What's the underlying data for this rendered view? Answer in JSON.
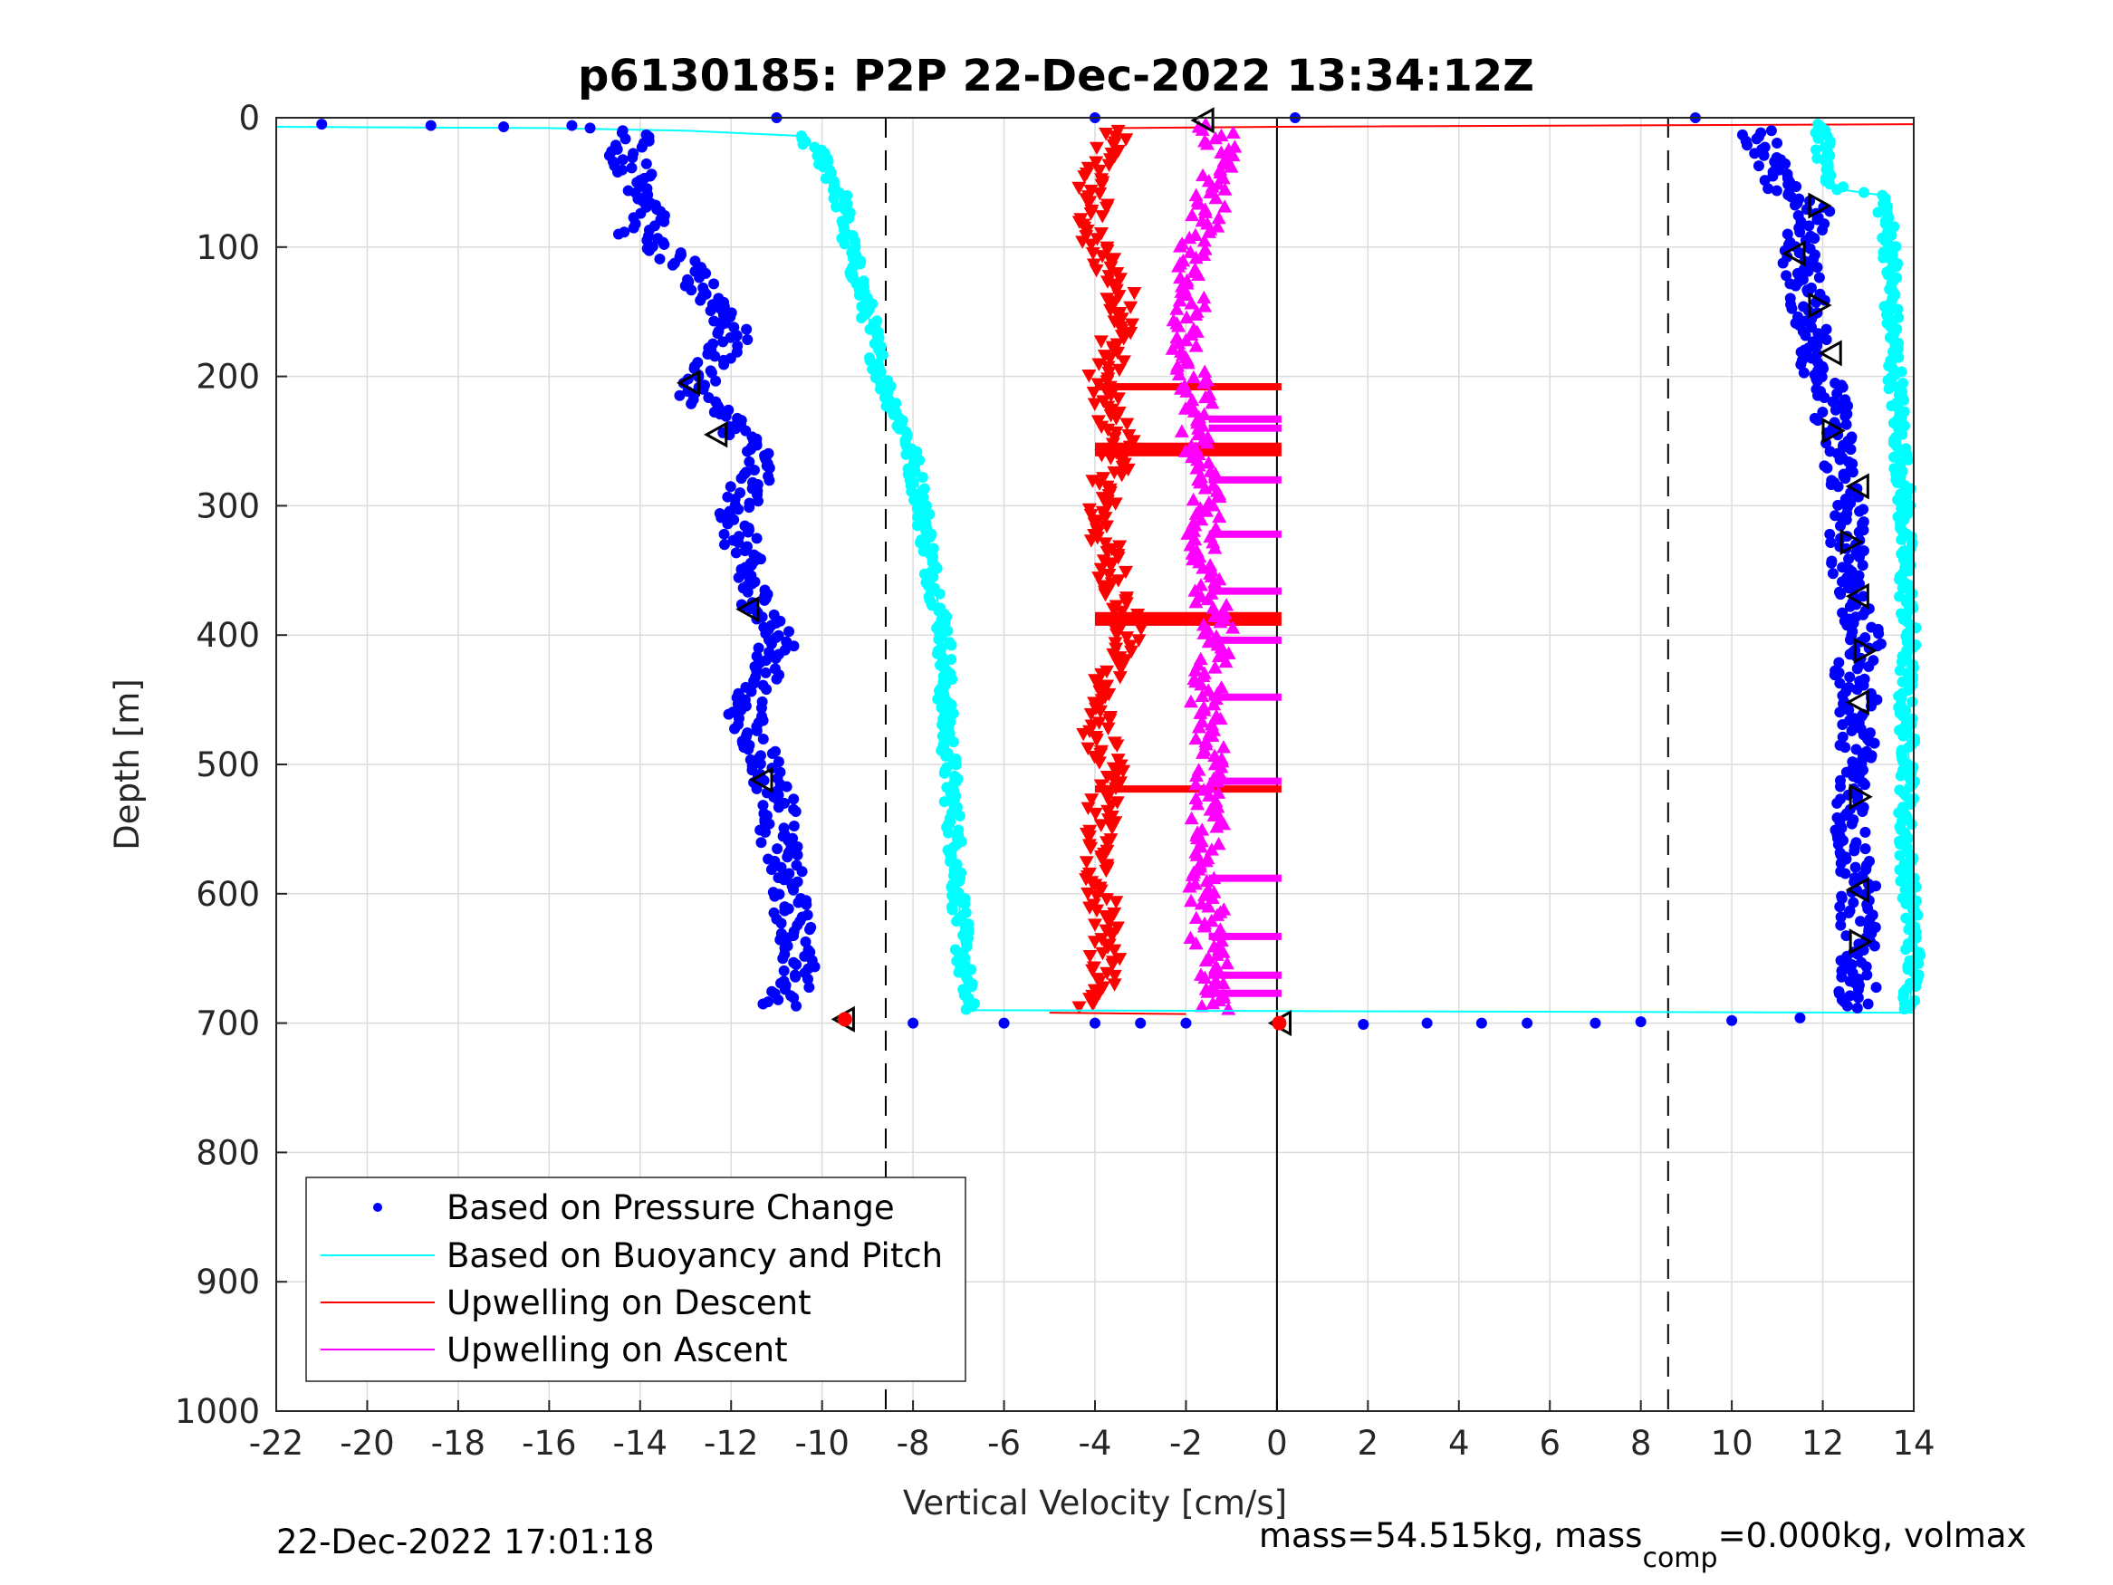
{
  "chart_data": {
    "type": "scatter",
    "title": "p6130185: P2P 22-Dec-2022 13:34:12Z",
    "xlabel": "Vertical Velocity [cm/s]",
    "ylabel": "Depth [m]",
    "xlim": [
      -22,
      14
    ],
    "ylim": [
      0,
      1000
    ],
    "y_reversed": true,
    "grid": true,
    "legend_position": "bottom-left",
    "xticks": [
      "-22",
      "-20",
      "-18",
      "-16",
      "-14",
      "-12",
      "-10",
      "-8",
      "-6",
      "-4",
      "-2",
      "0",
      "2",
      "4",
      "6",
      "8",
      "10",
      "12",
      "14"
    ],
    "yticks": [
      "0",
      "100",
      "200",
      "300",
      "400",
      "500",
      "600",
      "700",
      "800",
      "900",
      "1000"
    ],
    "reference_lines": {
      "dashed_x": [
        -8.6,
        8.6
      ],
      "solid_x": [
        0
      ]
    },
    "series": [
      {
        "name": "Based on Pressure Change",
        "color": "#0000ff",
        "marker": "dot",
        "descent": [
          {
            "depth": 10,
            "v": -14.0
          },
          {
            "depth": 30,
            "v": -14.3
          },
          {
            "depth": 50,
            "v": -14.0
          },
          {
            "depth": 70,
            "v": -13.6
          },
          {
            "depth": 90,
            "v": -14.1
          },
          {
            "depth": 110,
            "v": -13.2
          },
          {
            "depth": 130,
            "v": -12.7
          },
          {
            "depth": 150,
            "v": -12.1
          },
          {
            "depth": 170,
            "v": -12.0
          },
          {
            "depth": 190,
            "v": -12.4
          },
          {
            "depth": 210,
            "v": -12.9
          },
          {
            "depth": 230,
            "v": -12.2
          },
          {
            "depth": 250,
            "v": -11.6
          },
          {
            "depth": 270,
            "v": -11.4
          },
          {
            "depth": 290,
            "v": -11.7
          },
          {
            "depth": 310,
            "v": -11.9
          },
          {
            "depth": 330,
            "v": -11.8
          },
          {
            "depth": 350,
            "v": -11.7
          },
          {
            "depth": 370,
            "v": -11.5
          },
          {
            "depth": 390,
            "v": -11.1
          },
          {
            "depth": 410,
            "v": -11.0
          },
          {
            "depth": 430,
            "v": -11.3
          },
          {
            "depth": 450,
            "v": -11.6
          },
          {
            "depth": 470,
            "v": -11.7
          },
          {
            "depth": 490,
            "v": -11.3
          },
          {
            "depth": 510,
            "v": -11.2
          },
          {
            "depth": 530,
            "v": -10.9
          },
          {
            "depth": 550,
            "v": -11.0
          },
          {
            "depth": 570,
            "v": -10.9
          },
          {
            "depth": 590,
            "v": -10.8
          },
          {
            "depth": 610,
            "v": -10.7
          },
          {
            "depth": 630,
            "v": -10.6
          },
          {
            "depth": 650,
            "v": -10.5
          },
          {
            "depth": 670,
            "v": -10.6
          },
          {
            "depth": 685,
            "v": -10.9
          }
        ],
        "ascent": [
          {
            "depth": 690,
            "v": 12.6
          },
          {
            "depth": 670,
            "v": 12.8
          },
          {
            "depth": 650,
            "v": 12.7
          },
          {
            "depth": 630,
            "v": 12.8
          },
          {
            "depth": 610,
            "v": 12.7
          },
          {
            "depth": 590,
            "v": 12.8
          },
          {
            "depth": 570,
            "v": 12.7
          },
          {
            "depth": 550,
            "v": 12.6
          },
          {
            "depth": 530,
            "v": 12.7
          },
          {
            "depth": 510,
            "v": 12.6
          },
          {
            "depth": 490,
            "v": 12.8
          },
          {
            "depth": 470,
            "v": 12.7
          },
          {
            "depth": 450,
            "v": 12.8
          },
          {
            "depth": 430,
            "v": 12.6
          },
          {
            "depth": 410,
            "v": 12.9
          },
          {
            "depth": 390,
            "v": 12.8
          },
          {
            "depth": 370,
            "v": 12.7
          },
          {
            "depth": 350,
            "v": 12.6
          },
          {
            "depth": 330,
            "v": 12.5
          },
          {
            "depth": 310,
            "v": 12.6
          },
          {
            "depth": 290,
            "v": 12.5
          },
          {
            "depth": 270,
            "v": 12.4
          },
          {
            "depth": 250,
            "v": 12.3
          },
          {
            "depth": 230,
            "v": 12.2
          },
          {
            "depth": 210,
            "v": 12.1
          },
          {
            "depth": 190,
            "v": 11.9
          },
          {
            "depth": 170,
            "v": 11.8
          },
          {
            "depth": 150,
            "v": 11.7
          },
          {
            "depth": 130,
            "v": 11.6
          },
          {
            "depth": 110,
            "v": 11.5
          },
          {
            "depth": 90,
            "v": 11.6
          },
          {
            "depth": 70,
            "v": 11.8
          },
          {
            "depth": 50,
            "v": 10.9
          },
          {
            "depth": 30,
            "v": 10.8
          },
          {
            "depth": 10,
            "v": 10.6
          }
        ],
        "surface_points": [
          {
            "depth": 5,
            "v": -21.0
          },
          {
            "depth": 6,
            "v": -18.6
          },
          {
            "depth": 7,
            "v": -17.0
          },
          {
            "depth": 6,
            "v": -15.5
          },
          {
            "depth": 8,
            "v": -15.1
          },
          {
            "depth": 0,
            "v": -11.0
          },
          {
            "depth": 0,
            "v": -4.0
          },
          {
            "depth": 0,
            "v": 0.4
          },
          {
            "depth": 0,
            "v": 9.2
          },
          {
            "depth": 700,
            "v": -8.0
          },
          {
            "depth": 700,
            "v": -6.0
          },
          {
            "depth": 700,
            "v": -4.0
          },
          {
            "depth": 700,
            "v": -3.0
          },
          {
            "depth": 700,
            "v": -2.0
          },
          {
            "depth": 701,
            "v": 1.9
          },
          {
            "depth": 700,
            "v": 3.3
          },
          {
            "depth": 700,
            "v": 4.5
          },
          {
            "depth": 700,
            "v": 5.5
          },
          {
            "depth": 700,
            "v": 7.0
          },
          {
            "depth": 699,
            "v": 8.0
          },
          {
            "depth": 698,
            "v": 10.0
          },
          {
            "depth": 696,
            "v": 11.5
          }
        ]
      },
      {
        "name": "Based on Buoyancy and Pitch",
        "color": "#00ffff",
        "marker": "line",
        "descent": [
          {
            "depth": 7,
            "v": -22.0
          },
          {
            "depth": 8,
            "v": -16.0
          },
          {
            "depth": 10,
            "v": -13.0
          },
          {
            "depth": 14,
            "v": -10.5
          },
          {
            "depth": 30,
            "v": -10.0
          },
          {
            "depth": 60,
            "v": -9.6
          },
          {
            "depth": 100,
            "v": -9.4
          },
          {
            "depth": 150,
            "v": -9.0
          },
          {
            "depth": 200,
            "v": -8.7
          },
          {
            "depth": 250,
            "v": -8.1
          },
          {
            "depth": 300,
            "v": -7.8
          },
          {
            "depth": 350,
            "v": -7.6
          },
          {
            "depth": 400,
            "v": -7.3
          },
          {
            "depth": 450,
            "v": -7.3
          },
          {
            "depth": 500,
            "v": -7.2
          },
          {
            "depth": 550,
            "v": -7.1
          },
          {
            "depth": 600,
            "v": -7.0
          },
          {
            "depth": 650,
            "v": -6.9
          },
          {
            "depth": 690,
            "v": -6.8
          }
        ],
        "ascent": [
          {
            "depth": 692,
            "v": 13.9
          },
          {
            "depth": 650,
            "v": 14.0
          },
          {
            "depth": 600,
            "v": 13.9
          },
          {
            "depth": 550,
            "v": 13.8
          },
          {
            "depth": 500,
            "v": 13.9
          },
          {
            "depth": 450,
            "v": 13.8
          },
          {
            "depth": 400,
            "v": 13.9
          },
          {
            "depth": 350,
            "v": 13.8
          },
          {
            "depth": 300,
            "v": 13.8
          },
          {
            "depth": 250,
            "v": 13.7
          },
          {
            "depth": 200,
            "v": 13.6
          },
          {
            "depth": 150,
            "v": 13.5
          },
          {
            "depth": 100,
            "v": 13.5
          },
          {
            "depth": 60,
            "v": 13.3
          },
          {
            "depth": 55,
            "v": 12.3
          },
          {
            "depth": 30,
            "v": 12.0
          },
          {
            "depth": 5,
            "v": 12.0
          }
        ]
      },
      {
        "name": "Upwelling on Descent",
        "color": "#ff0000",
        "marker": "triangle-down",
        "values": [
          {
            "depth": 10,
            "v": -3.6
          },
          {
            "depth": 30,
            "v": -3.8
          },
          {
            "depth": 50,
            "v": -4.1
          },
          {
            "depth": 70,
            "v": -4.0
          },
          {
            "depth": 90,
            "v": -4.2
          },
          {
            "depth": 110,
            "v": -3.8
          },
          {
            "depth": 130,
            "v": -3.5
          },
          {
            "depth": 150,
            "v": -3.3
          },
          {
            "depth": 170,
            "v": -3.5
          },
          {
            "depth": 190,
            "v": -3.7
          },
          {
            "depth": 210,
            "v": -3.9
          },
          {
            "depth": 230,
            "v": -3.7
          },
          {
            "depth": 250,
            "v": -3.4
          },
          {
            "depth": 270,
            "v": -3.6
          },
          {
            "depth": 290,
            "v": -3.8
          },
          {
            "depth": 310,
            "v": -3.9
          },
          {
            "depth": 330,
            "v": -3.8
          },
          {
            "depth": 350,
            "v": -3.6
          },
          {
            "depth": 370,
            "v": -3.5
          },
          {
            "depth": 390,
            "v": -3.3
          },
          {
            "depth": 410,
            "v": -3.4
          },
          {
            "depth": 430,
            "v": -3.6
          },
          {
            "depth": 450,
            "v": -3.9
          },
          {
            "depth": 470,
            "v": -4.0
          },
          {
            "depth": 490,
            "v": -3.8
          },
          {
            "depth": 510,
            "v": -3.7
          },
          {
            "depth": 530,
            "v": -3.8
          },
          {
            "depth": 550,
            "v": -3.9
          },
          {
            "depth": 570,
            "v": -4.0
          },
          {
            "depth": 590,
            "v": -3.9
          },
          {
            "depth": 610,
            "v": -3.8
          },
          {
            "depth": 630,
            "v": -3.7
          },
          {
            "depth": 650,
            "v": -3.8
          },
          {
            "depth": 670,
            "v": -3.9
          },
          {
            "depth": 685,
            "v": -4.2
          }
        ],
        "horizontal_bands": [
          {
            "depth": 208,
            "v0": -4.0,
            "v1": 0.1
          },
          {
            "depth": 254,
            "v0": -4.0,
            "v1": 0.1
          },
          {
            "depth": 259,
            "v0": -4.0,
            "v1": 0.1
          },
          {
            "depth": 385,
            "v0": -4.0,
            "v1": 0.1
          },
          {
            "depth": 390,
            "v0": -4.0,
            "v1": 0.1
          },
          {
            "depth": 519,
            "v0": -4.0,
            "v1": 0.1
          }
        ],
        "surface_line": [
          {
            "depth": 8,
            "v": -3.4
          },
          {
            "depth": 7,
            "v": 0.0
          },
          {
            "depth": 5,
            "v": 14.0
          }
        ]
      },
      {
        "name": "Upwelling on Ascent",
        "color": "#ff00ff",
        "marker": "triangle-up",
        "values": [
          {
            "depth": 690,
            "v": -1.4
          },
          {
            "depth": 670,
            "v": -1.5
          },
          {
            "depth": 650,
            "v": -1.4
          },
          {
            "depth": 630,
            "v": -1.6
          },
          {
            "depth": 610,
            "v": -1.5
          },
          {
            "depth": 590,
            "v": -1.7
          },
          {
            "depth": 570,
            "v": -1.6
          },
          {
            "depth": 550,
            "v": -1.5
          },
          {
            "depth": 530,
            "v": -1.6
          },
          {
            "depth": 510,
            "v": -1.5
          },
          {
            "depth": 490,
            "v": -1.4
          },
          {
            "depth": 470,
            "v": -1.5
          },
          {
            "depth": 450,
            "v": -1.6
          },
          {
            "depth": 430,
            "v": -1.5
          },
          {
            "depth": 410,
            "v": -1.2
          },
          {
            "depth": 390,
            "v": -1.3
          },
          {
            "depth": 370,
            "v": -1.5
          },
          {
            "depth": 350,
            "v": -1.6
          },
          {
            "depth": 330,
            "v": -1.7
          },
          {
            "depth": 310,
            "v": -1.5
          },
          {
            "depth": 290,
            "v": -1.6
          },
          {
            "depth": 270,
            "v": -1.7
          },
          {
            "depth": 250,
            "v": -1.8
          },
          {
            "depth": 230,
            "v": -1.7
          },
          {
            "depth": 210,
            "v": -1.8
          },
          {
            "depth": 190,
            "v": -1.9
          },
          {
            "depth": 170,
            "v": -2.0
          },
          {
            "depth": 150,
            "v": -1.9
          },
          {
            "depth": 130,
            "v": -1.8
          },
          {
            "depth": 110,
            "v": -1.9
          },
          {
            "depth": 90,
            "v": -1.7
          },
          {
            "depth": 70,
            "v": -1.5
          },
          {
            "depth": 50,
            "v": -1.4
          },
          {
            "depth": 30,
            "v": -1.3
          },
          {
            "depth": 10,
            "v": -1.2
          }
        ],
        "horizontal_bands": [
          {
            "depth": 233,
            "v0": -1.5,
            "v1": 0.1
          },
          {
            "depth": 240,
            "v0": -1.5,
            "v1": 0.1
          },
          {
            "depth": 280,
            "v0": -1.5,
            "v1": 0.1
          },
          {
            "depth": 322,
            "v0": -1.5,
            "v1": 0.1
          },
          {
            "depth": 366,
            "v0": -1.5,
            "v1": 0.1
          },
          {
            "depth": 404,
            "v0": -1.5,
            "v1": 0.1
          },
          {
            "depth": 448,
            "v0": -1.5,
            "v1": 0.1
          },
          {
            "depth": 513,
            "v0": -1.5,
            "v1": 0.1
          },
          {
            "depth": 588,
            "v0": -1.5,
            "v1": 0.1
          },
          {
            "depth": 633,
            "v0": -1.5,
            "v1": 0.1
          },
          {
            "depth": 663,
            "v0": -1.5,
            "v1": 0.1
          },
          {
            "depth": 677,
            "v0": -1.5,
            "v1": 0.1
          }
        ]
      }
    ],
    "annotations": {
      "black_triangles_descent": [
        {
          "depth": 205,
          "v": -12.9
        },
        {
          "depth": 245,
          "v": -12.3
        },
        {
          "depth": 380,
          "v": -11.6
        },
        {
          "depth": 512,
          "v": -11.3
        },
        {
          "depth": 2,
          "v": -1.6
        },
        {
          "depth": 697,
          "v": -9.5
        },
        {
          "depth": 700,
          "v": 0.1
        }
      ],
      "black_triangles_ascent": [
        {
          "depth": 68,
          "v": 11.9
        },
        {
          "depth": 105,
          "v": 11.4
        },
        {
          "depth": 145,
          "v": 11.9
        },
        {
          "depth": 182,
          "v": 12.2
        },
        {
          "depth": 242,
          "v": 12.2
        },
        {
          "depth": 285,
          "v": 12.8
        },
        {
          "depth": 328,
          "v": 12.6
        },
        {
          "depth": 370,
          "v": 12.8
        },
        {
          "depth": 412,
          "v": 12.9
        },
        {
          "depth": 452,
          "v": 12.8
        },
        {
          "depth": 525,
          "v": 12.8
        },
        {
          "depth": 597,
          "v": 12.8
        },
        {
          "depth": 637,
          "v": 12.8
        }
      ]
    }
  },
  "footer": {
    "timestamp": "22-Dec-2022 17:01:18",
    "mass_prefix": "mass=54.515kg, mass",
    "mass_sub": "comp",
    "mass_suffix": "=0.000kg, volmax"
  }
}
